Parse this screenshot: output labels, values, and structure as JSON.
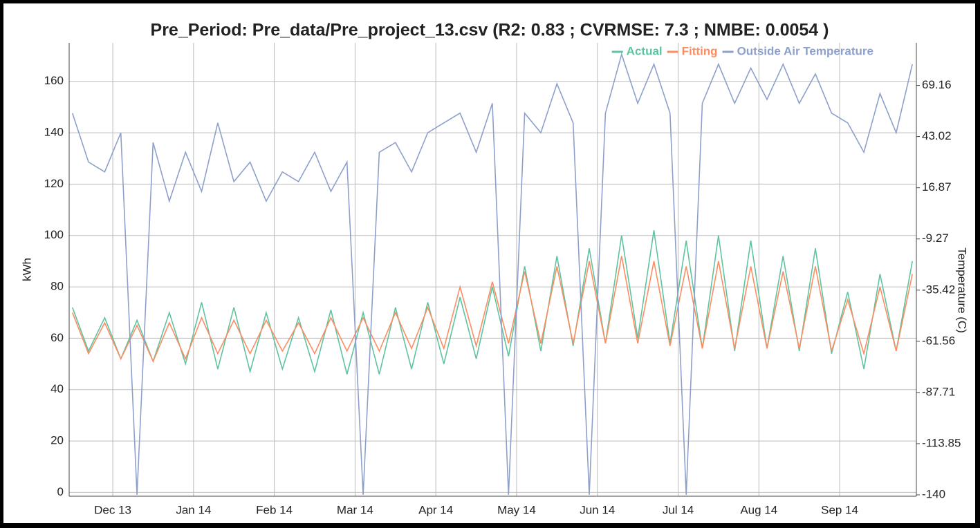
{
  "chart_data": {
    "type": "line",
    "title": "Pre_Period: Pre_data/Pre_project_13.csv (R2: 0.83 ; CVRMSE: 7.3 ; NMBE: 0.0054 )",
    "ylabel": "kWh",
    "y2label": "Temperature (C)",
    "x": [
      -0.5,
      -0.3,
      -0.1,
      0.1,
      0.3,
      0.5,
      0.7,
      0.9,
      1.1,
      1.3,
      1.5,
      1.7,
      1.9,
      2.1,
      2.3,
      2.5,
      2.7,
      2.9,
      3.1,
      3.3,
      3.5,
      3.7,
      3.9,
      4.1,
      4.3,
      4.5,
      4.7,
      4.9,
      5.1,
      5.3,
      5.5,
      5.7,
      5.9,
      6.1,
      6.3,
      6.5,
      6.7,
      6.9,
      7.1,
      7.3,
      7.5,
      7.7,
      7.9,
      8.1,
      8.3,
      8.5,
      8.7,
      8.9,
      9.1,
      9.3,
      9.5,
      9.7,
      9.9
    ],
    "xlim": [
      -0.54,
      9.95
    ],
    "xticks": [
      {
        "value": 0,
        "label": "Dec 13"
      },
      {
        "value": 1,
        "label": "Jan 14"
      },
      {
        "value": 2,
        "label": "Feb 14"
      },
      {
        "value": 3,
        "label": "Mar 14"
      },
      {
        "value": 4,
        "label": "Apr 14"
      },
      {
        "value": 5,
        "label": "May 14"
      },
      {
        "value": 6,
        "label": "Jun 14"
      },
      {
        "value": 7,
        "label": "Jul 14"
      },
      {
        "value": 8,
        "label": "Aug 14"
      },
      {
        "value": 9,
        "label": "Sep 14"
      }
    ],
    "ylim": [
      -1.5,
      175
    ],
    "yticks": [
      0,
      20,
      40,
      60,
      80,
      100,
      120,
      140,
      160
    ],
    "y2lim": [
      -140.7,
      90.9
    ],
    "y2ticks": [
      -140,
      -113.85,
      -87.71,
      -61.56,
      -35.42,
      -9.27,
      16.87,
      43.02,
      69.16
    ],
    "grid": true,
    "legend": "upper right",
    "series": [
      {
        "name": "Actual",
        "color": "#5fc39f",
        "values": [
          72,
          55,
          68,
          52,
          67,
          51,
          70,
          50,
          74,
          48,
          72,
          47,
          70,
          48,
          68,
          47,
          71,
          46,
          70,
          46,
          72,
          48,
          74,
          50,
          76,
          52,
          80,
          53,
          88,
          55,
          92,
          57,
          95,
          58,
          100,
          60,
          102,
          58,
          98,
          56,
          100,
          55,
          98,
          56,
          92,
          55,
          95,
          54,
          78,
          48,
          85,
          55,
          90
        ]
      },
      {
        "name": "Fitting",
        "color": "#fc8d62",
        "values": [
          70,
          54,
          66,
          52,
          65,
          51,
          66,
          52,
          68,
          54,
          67,
          54,
          67,
          55,
          66,
          54,
          68,
          55,
          68,
          55,
          70,
          56,
          72,
          56,
          80,
          57,
          82,
          58,
          86,
          58,
          88,
          58,
          90,
          58,
          92,
          58,
          90,
          57,
          88,
          56,
          90,
          56,
          88,
          56,
          86,
          56,
          88,
          55,
          75,
          54,
          80,
          55,
          85
        ]
      },
      {
        "name": "Outside Air Temperature",
        "color": "#8da0cb",
        "axis": "y2",
        "values": [
          55,
          30,
          25,
          45,
          -140,
          40,
          10,
          35,
          15,
          50,
          20,
          30,
          10,
          25,
          20,
          35,
          15,
          30,
          -140,
          35,
          40,
          25,
          45,
          50,
          55,
          35,
          60,
          -140,
          55,
          45,
          70,
          50,
          -140,
          55,
          85,
          60,
          80,
          55,
          -140,
          60,
          80,
          60,
          78,
          62,
          80,
          60,
          75,
          55,
          50,
          35,
          65,
          45,
          80
        ]
      }
    ]
  }
}
